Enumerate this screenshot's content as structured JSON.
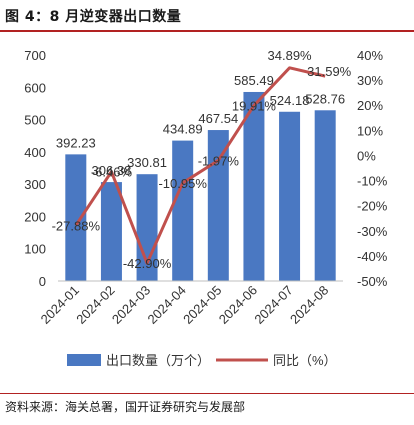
{
  "title": "图 4：8 月逆变器出口数量",
  "source": "资料来源：海关总署，国开证券研究与发展部",
  "chart_data": {
    "type": "bar",
    "categories": [
      "2024-01",
      "2024-02",
      "2024-03",
      "2024-04",
      "2024-05",
      "2024-06",
      "2024-07",
      "2024-08"
    ],
    "series": [
      {
        "name": "出口数量（万个）",
        "type": "bar",
        "axis": "left",
        "values": [
          392.23,
          306.38,
          330.81,
          434.89,
          467.54,
          585.49,
          524.18,
          528.76
        ],
        "labels": [
          "392.23",
          "306.38",
          "330.81",
          "434.89",
          "467.54",
          "585.49",
          "524.18",
          "528.76"
        ],
        "color": "#4a78c2"
      },
      {
        "name": "同比（%）",
        "type": "line",
        "axis": "right",
        "values": [
          -27.88,
          -6.46,
          -42.9,
          -10.95,
          -1.97,
          19.91,
          34.89,
          31.59
        ],
        "labels": [
          "-27.88%",
          "-6.46%",
          "-42.90%",
          "-10.95%",
          "-1.97%",
          "19.91%",
          "34.89%",
          "31.59%"
        ],
        "color": "#c0504d"
      }
    ],
    "y_left": {
      "min": 0,
      "max": 700,
      "ticks": [
        "0",
        "100",
        "200",
        "300",
        "400",
        "500",
        "600",
        "700"
      ]
    },
    "y_right": {
      "min": -50,
      "max": 40,
      "ticks": [
        "-50%",
        "-40%",
        "-30%",
        "-20%",
        "-10%",
        "0%",
        "10%",
        "20%",
        "30%",
        "40%"
      ]
    },
    "grid": false,
    "legend_position": "bottom"
  }
}
